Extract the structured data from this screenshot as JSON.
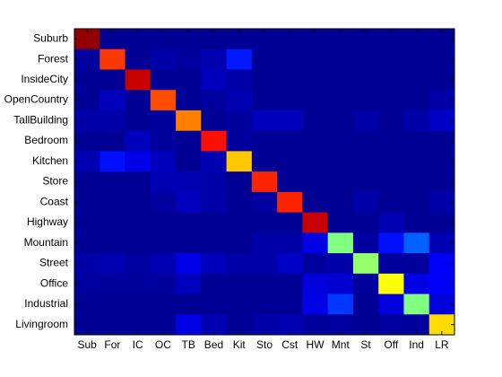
{
  "chart_data": {
    "type": "heatmap",
    "colormap": "jet",
    "clim": [
      0,
      1
    ],
    "x_categories": [
      "Sub",
      "For",
      "IC",
      "OC",
      "TB",
      "Bed",
      "Kit",
      "Sto",
      "Cst",
      "HW",
      "Mnt",
      "St",
      "Off",
      "Ind",
      "LR"
    ],
    "y_categories": [
      "Suburb",
      "Forest",
      "InsideCity",
      "OpenCountry",
      "TallBuilding",
      "Bedroom",
      "Kitchen",
      "Store",
      "Coast",
      "Highway",
      "Mountain",
      "Street",
      "Office",
      "Industrial",
      "Livingroom"
    ],
    "values": [
      [
        0.98,
        0.02,
        0.02,
        0.02,
        0.02,
        0.02,
        0.02,
        0.02,
        0.02,
        0.02,
        0.02,
        0.02,
        0.02,
        0.02,
        0.02
      ],
      [
        0.03,
        0.82,
        0.02,
        0.04,
        0.03,
        0.05,
        0.15,
        0.02,
        0.02,
        0.02,
        0.02,
        0.02,
        0.02,
        0.02,
        0.02
      ],
      [
        0.02,
        0.02,
        0.93,
        0.02,
        0.02,
        0.06,
        0.04,
        0.02,
        0.02,
        0.02,
        0.02,
        0.02,
        0.02,
        0.02,
        0.02
      ],
      [
        0.02,
        0.06,
        0.02,
        0.8,
        0.02,
        0.03,
        0.05,
        0.02,
        0.02,
        0.02,
        0.02,
        0.02,
        0.02,
        0.02,
        0.04
      ],
      [
        0.04,
        0.04,
        0.02,
        0.03,
        0.75,
        0.02,
        0.03,
        0.06,
        0.06,
        0.02,
        0.02,
        0.04,
        0.02,
        0.04,
        0.07
      ],
      [
        0.02,
        0.02,
        0.06,
        0.03,
        0.02,
        0.86,
        0.03,
        0.02,
        0.02,
        0.02,
        0.02,
        0.02,
        0.02,
        0.02,
        0.02
      ],
      [
        0.05,
        0.14,
        0.1,
        0.06,
        0.02,
        0.05,
        0.68,
        0.02,
        0.02,
        0.02,
        0.02,
        0.02,
        0.02,
        0.02,
        0.02
      ],
      [
        0.02,
        0.02,
        0.02,
        0.05,
        0.05,
        0.04,
        0.02,
        0.84,
        0.02,
        0.02,
        0.02,
        0.02,
        0.02,
        0.02,
        0.02
      ],
      [
        0.02,
        0.02,
        0.02,
        0.03,
        0.06,
        0.04,
        0.02,
        0.03,
        0.84,
        0.02,
        0.02,
        0.04,
        0.02,
        0.02,
        0.04
      ],
      [
        0.02,
        0.02,
        0.02,
        0.02,
        0.02,
        0.02,
        0.02,
        0.02,
        0.02,
        0.93,
        0.02,
        0.02,
        0.05,
        0.02,
        0.02
      ],
      [
        0.02,
        0.02,
        0.02,
        0.02,
        0.02,
        0.02,
        0.02,
        0.04,
        0.04,
        0.1,
        0.5,
        0.03,
        0.14,
        0.22,
        0.05
      ],
      [
        0.04,
        0.05,
        0.03,
        0.05,
        0.1,
        0.06,
        0.04,
        0.04,
        0.07,
        0.03,
        0.04,
        0.52,
        0.03,
        0.03,
        0.12
      ],
      [
        0.03,
        0.03,
        0.03,
        0.03,
        0.06,
        0.02,
        0.02,
        0.02,
        0.02,
        0.09,
        0.08,
        0.03,
        0.62,
        0.1,
        0.12
      ],
      [
        0.02,
        0.02,
        0.02,
        0.02,
        0.02,
        0.02,
        0.02,
        0.02,
        0.02,
        0.1,
        0.18,
        0.02,
        0.09,
        0.5,
        0.09
      ],
      [
        0.02,
        0.02,
        0.02,
        0.02,
        0.1,
        0.05,
        0.02,
        0.04,
        0.05,
        0.03,
        0.03,
        0.02,
        0.03,
        0.03,
        0.66
      ]
    ]
  }
}
